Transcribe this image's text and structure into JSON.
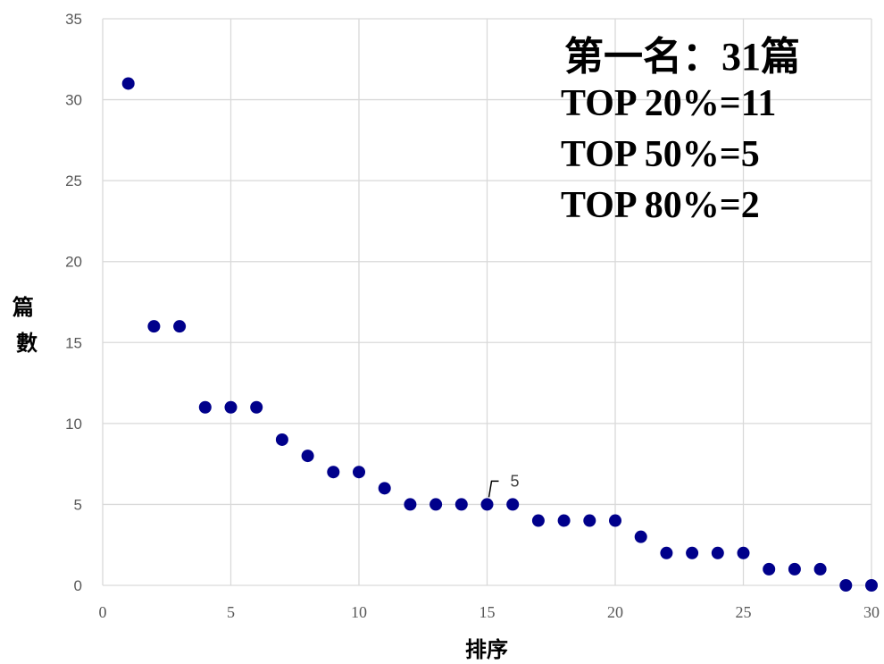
{
  "chart_data": {
    "type": "scatter",
    "xlabel": "排序",
    "ylabel": "篇數",
    "xlim": [
      0,
      30
    ],
    "ylim": [
      0,
      35
    ],
    "x_ticks": [
      "0",
      "5",
      "10",
      "15",
      "20",
      "25",
      "30"
    ],
    "y_ticks": [
      "0",
      "5",
      "10",
      "15",
      "20",
      "25",
      "30",
      "35"
    ],
    "grid": true,
    "marker_color": "#00008B",
    "series": [
      {
        "x": [
          1,
          2,
          3,
          4,
          5,
          6,
          7,
          8,
          9,
          10,
          11,
          12,
          13,
          14,
          15,
          16,
          17,
          18,
          19,
          20,
          21,
          22,
          23,
          24,
          25,
          26,
          27,
          28,
          29,
          30
        ],
        "y": [
          31,
          16,
          16,
          11,
          11,
          11,
          9,
          8,
          7,
          7,
          6,
          5,
          5,
          5,
          5,
          5,
          4,
          4,
          4,
          4,
          3,
          2,
          2,
          2,
          2,
          1,
          1,
          1,
          0,
          0
        ]
      }
    ],
    "data_labels": [
      {
        "x": 15,
        "y": 5,
        "text": "5"
      }
    ],
    "annotations": [
      "第一名：31篇",
      "TOP 20%=11",
      "TOP 50%=5",
      "TOP 80%=2"
    ]
  }
}
